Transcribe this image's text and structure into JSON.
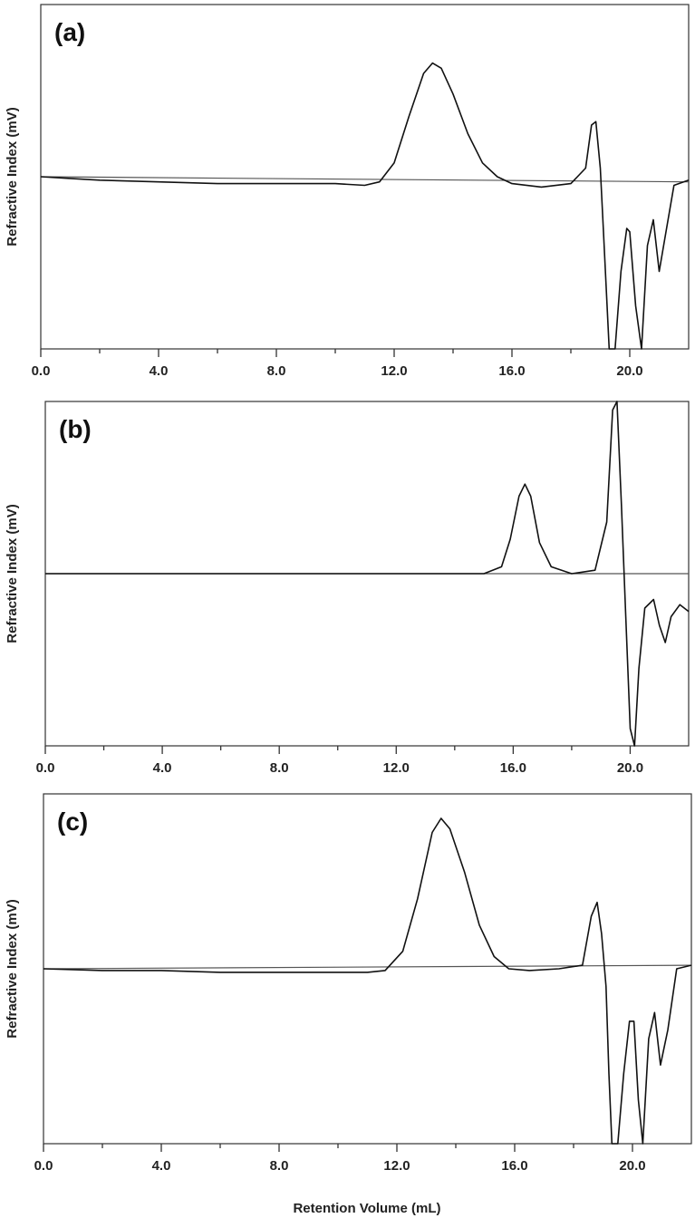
{
  "figure": {
    "xlabel": "Retention Volume (mL)"
  },
  "chart_data": [
    {
      "type": "line",
      "panel_label": "(a)",
      "xlabel": "",
      "ylabel": "Refractive Index (mV)",
      "xlim": [
        0,
        22
      ],
      "x_ticks": [
        0,
        4,
        8,
        12,
        16,
        20
      ],
      "x_tick_labels": [
        "0.0",
        "4.0",
        "8.0",
        "12.0",
        "16.0",
        "20.0"
      ],
      "ylim": [
        -1.0,
        1.0
      ],
      "baseline": {
        "x": [
          0,
          22
        ],
        "y": [
          0.0,
          -0.03
        ]
      },
      "signal": {
        "x": [
          0,
          1,
          2,
          4,
          6,
          8,
          10,
          11,
          11.5,
          12,
          12.5,
          13,
          13.3,
          13.6,
          14,
          14.5,
          15,
          15.5,
          16,
          17,
          18,
          18.5,
          18.7,
          18.85,
          19.0,
          19.1,
          19.3,
          19.5,
          19.7,
          19.9,
          20.0,
          20.2,
          20.4,
          20.6,
          20.8,
          21.0,
          21.2,
          21.5,
          22
        ],
        "y": [
          0.0,
          -0.01,
          -0.02,
          -0.03,
          -0.04,
          -0.04,
          -0.04,
          -0.05,
          -0.03,
          0.08,
          0.35,
          0.6,
          0.66,
          0.63,
          0.48,
          0.25,
          0.08,
          0.0,
          -0.04,
          -0.06,
          -0.04,
          0.05,
          0.3,
          0.32,
          0.05,
          -0.3,
          -1.05,
          -1.05,
          -0.55,
          -0.3,
          -0.32,
          -0.75,
          -1.05,
          -0.4,
          -0.25,
          -0.55,
          -0.35,
          -0.05,
          -0.02
        ]
      }
    },
    {
      "type": "line",
      "panel_label": "(b)",
      "xlabel": "",
      "ylabel": "Refractive Index (mV)",
      "xlim": [
        0,
        22
      ],
      "x_ticks": [
        0,
        4,
        8,
        12,
        16,
        20
      ],
      "x_tick_labels": [
        "0.0",
        "4.0",
        "8.0",
        "12.0",
        "16.0",
        "20.0"
      ],
      "ylim": [
        -1.0,
        1.0
      ],
      "baseline": {
        "x": [
          0,
          22
        ],
        "y": [
          0.0,
          0.0
        ]
      },
      "signal": {
        "x": [
          0,
          4,
          8,
          12,
          15,
          15.6,
          15.9,
          16.2,
          16.4,
          16.6,
          16.9,
          17.3,
          18,
          18.8,
          19.2,
          19.4,
          19.55,
          19.7,
          19.85,
          20.0,
          20.15,
          20.3,
          20.5,
          20.8,
          21.0,
          21.2,
          21.4,
          21.7,
          22
        ],
        "y": [
          0.0,
          0.0,
          0.0,
          0.0,
          0.0,
          0.04,
          0.2,
          0.45,
          0.52,
          0.45,
          0.18,
          0.04,
          0.0,
          0.02,
          0.3,
          0.95,
          1.15,
          0.4,
          -0.25,
          -0.9,
          -1.05,
          -0.55,
          -0.2,
          -0.15,
          -0.3,
          -0.4,
          -0.25,
          -0.18,
          -0.22
        ]
      }
    },
    {
      "type": "line",
      "panel_label": "(c)",
      "xlabel": "Retention Volume (mL)",
      "ylabel": "Refractive Index (mV)",
      "xlim": [
        0,
        22
      ],
      "x_ticks": [
        0,
        4,
        8,
        12,
        16,
        20
      ],
      "x_tick_labels": [
        "0.0",
        "4.0",
        "8.0",
        "12.0",
        "16.0",
        "20.0"
      ],
      "ylim": [
        -1.0,
        1.0
      ],
      "baseline": {
        "x": [
          0,
          22
        ],
        "y": [
          0.0,
          0.02
        ]
      },
      "signal": {
        "x": [
          0,
          2,
          4,
          6,
          8,
          10,
          11,
          11.6,
          12.2,
          12.7,
          13.2,
          13.5,
          13.8,
          14.3,
          14.8,
          15.3,
          15.8,
          16.5,
          17.5,
          18.3,
          18.6,
          18.8,
          18.95,
          19.1,
          19.2,
          19.3,
          19.5,
          19.7,
          19.9,
          20.05,
          20.2,
          20.35,
          20.55,
          20.75,
          20.95,
          21.2,
          21.5,
          22
        ],
        "y": [
          0.0,
          -0.01,
          -0.01,
          -0.02,
          -0.02,
          -0.02,
          -0.02,
          -0.01,
          0.1,
          0.4,
          0.78,
          0.86,
          0.8,
          0.55,
          0.25,
          0.07,
          0.0,
          -0.01,
          0.0,
          0.02,
          0.3,
          0.38,
          0.2,
          -0.1,
          -0.6,
          -1.05,
          -1.05,
          -0.6,
          -0.3,
          -0.3,
          -0.75,
          -1.05,
          -0.4,
          -0.25,
          -0.55,
          -0.35,
          0.0,
          0.02
        ]
      }
    }
  ]
}
